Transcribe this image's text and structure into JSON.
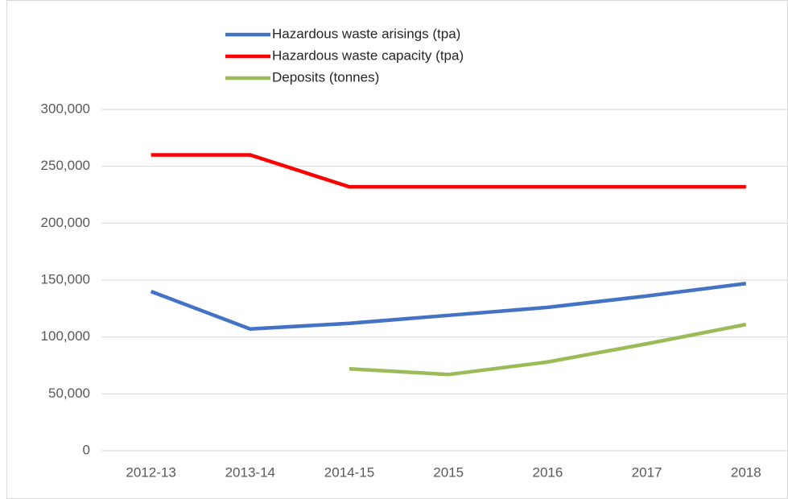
{
  "chart_data": {
    "type": "line",
    "categories": [
      "2012-13",
      "2013-14",
      "2014-15",
      "2015",
      "2016",
      "2017",
      "2018"
    ],
    "series": [
      {
        "name": "Hazardous waste arisings (tpa)",
        "color": "#4472c4",
        "values": [
          140000,
          107000,
          112000,
          119000,
          126000,
          136000,
          147000
        ]
      },
      {
        "name": "Hazardous waste capacity (tpa)",
        "color": "#ff0000",
        "values": [
          260000,
          260000,
          232000,
          232000,
          232000,
          232000,
          232000
        ]
      },
      {
        "name": "Deposits (tonnes)",
        "color": "#9bbb59",
        "values": [
          null,
          null,
          72000,
          67000,
          78000,
          94000,
          111000
        ]
      }
    ],
    "ylim": [
      0,
      300000
    ],
    "yticks": [
      0,
      {
        "value": 50000,
        "label": "50,000"
      },
      {
        "value": 100000,
        "label": "100,000"
      },
      {
        "value": 150000,
        "label": "150,000"
      },
      {
        "value": 200000,
        "label": "200,000"
      },
      {
        "value": 250000,
        "label": "250,000"
      },
      {
        "value": 300000,
        "label": "300,000"
      }
    ],
    "grid": true,
    "legend": "top"
  }
}
